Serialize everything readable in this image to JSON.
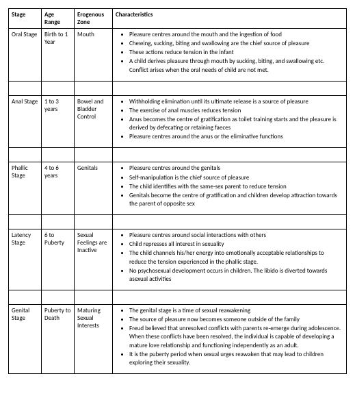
{
  "headers": {
    "stage": "Stage",
    "age": "Age Range",
    "zone": "Erogenous Zone",
    "char": "Characteristics"
  },
  "rows": [
    {
      "stage": "Oral Stage",
      "age": "Birth to 1 Year",
      "zone": "Mouth",
      "chars": [
        "Pleasure centres around the mouth and the ingestion of food",
        "Chewing, sucking, biting and swallowing are the chief source of pleasure",
        "These actions reduce tension in the infant",
        "A child derives pleasure through mouth by sucking, biting, and swallowing etc. Conflict arises when the oral needs of child are not met."
      ]
    },
    {
      "stage": "Anal Stage",
      "age": "1 to 3 years",
      "zone": "Bowel and Bladder Control",
      "chars": [
        "Withholding elimination until its ultimate release is a source of pleasure",
        "The exercise of anal muscles reduces tension",
        "Anus becomes the centre of gratification as toilet training starts and the pleasure is derived by defecating or retaining faeces",
        "Pleasure centres around the anus or the eliminative functions"
      ]
    },
    {
      "stage": "Phallic Stage",
      "age": "4 to 6 years",
      "zone": "Genitals",
      "chars": [
        "Pleasure centres around the genitals",
        "Self-manipulation is the chief source of pleasure",
        "The child identifies with the same-sex parent to reduce tension",
        "Genitals become the centre of gratification and children develop attraction towards the parent of opposite sex"
      ]
    },
    {
      "stage": "Latency Stage",
      "age": "6 to Puberty",
      "zone": "Sexual Feelings are Inactive",
      "chars": [
        "Pleasure centres around social interactions with others",
        "Child represses all interest in sexuality",
        "The child channels his/her energy into emotionally acceptable relationships to reduce the tension experienced in the phallic stage.",
        "No psychosexual development occurs in children. The libido is diverted towards asexual activities"
      ]
    },
    {
      "stage": "Genital Stage",
      "age": "Puberty to Death",
      "zone": "Maturing Sexual Interests",
      "chars": [
        "The genital stage is a time of sexual reawakening",
        "The source of pleasure now becomes someone outside of the family",
        "Freud believed that unresolved conflicts with parents re-emerge during adolescence. When these conflicts have been resolved, the individual is capable of developing a mature love relationship and functioning independently as an adult.",
        "It is the puberty period when sexual urges reawaken that may lead to children exploring their sexuality."
      ]
    }
  ]
}
